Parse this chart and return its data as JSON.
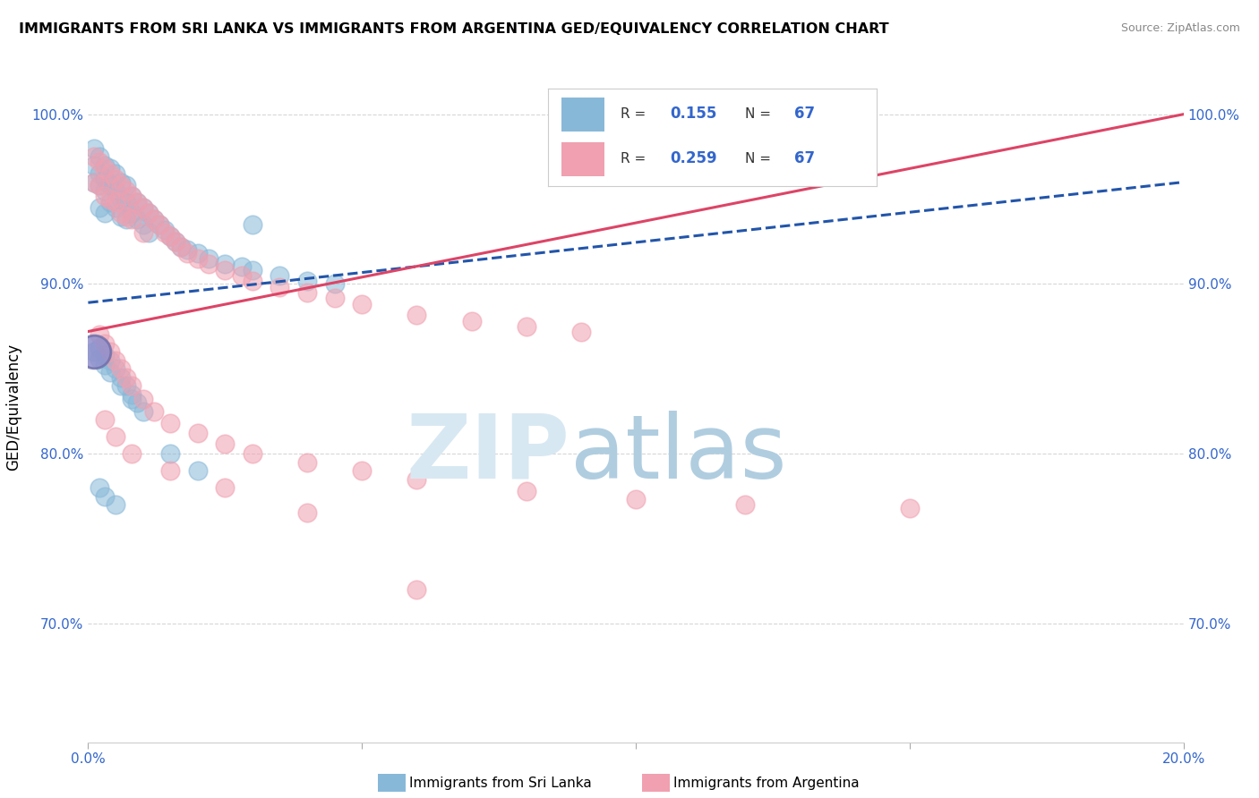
{
  "title": "IMMIGRANTS FROM SRI LANKA VS IMMIGRANTS FROM ARGENTINA GED/EQUIVALENCY CORRELATION CHART",
  "source_text": "Source: ZipAtlas.com",
  "ylabel": "GED/Equivalency",
  "xlim": [
    0.0,
    0.2
  ],
  "ylim": [
    0.63,
    1.025
  ],
  "yticks": [
    0.7,
    0.8,
    0.9,
    1.0
  ],
  "ytick_labels": [
    "70.0%",
    "80.0%",
    "90.0%",
    "100.0%"
  ],
  "xticks": [
    0.0,
    0.05,
    0.1,
    0.15,
    0.2
  ],
  "xtick_labels": [
    "0.0%",
    "",
    "",
    "",
    "20.0%"
  ],
  "xtick_minor": [
    0.025,
    0.075,
    0.125,
    0.175
  ],
  "legend_r_sri_lanka": "0.155",
  "legend_n_sri_lanka": "67",
  "legend_r_argentina": "0.259",
  "legend_n_argentina": "67",
  "sri_lanka_color": "#88B8D8",
  "argentina_color": "#F0A0B0",
  "sri_lanka_line_color": "#2255AA",
  "argentina_line_color": "#DD4466",
  "sri_lanka_trend": [
    0.0,
    0.2,
    0.889,
    0.96
  ],
  "argentina_trend": [
    0.0,
    0.2,
    0.872,
    1.0
  ],
  "sri_lanka_x": [
    0.001,
    0.001,
    0.001,
    0.002,
    0.002,
    0.002,
    0.002,
    0.003,
    0.003,
    0.003,
    0.003,
    0.004,
    0.004,
    0.004,
    0.005,
    0.005,
    0.005,
    0.006,
    0.006,
    0.006,
    0.007,
    0.007,
    0.007,
    0.008,
    0.008,
    0.009,
    0.009,
    0.01,
    0.01,
    0.011,
    0.011,
    0.012,
    0.013,
    0.014,
    0.015,
    0.016,
    0.017,
    0.018,
    0.02,
    0.022,
    0.025,
    0.028,
    0.03,
    0.035,
    0.04,
    0.045,
    0.002,
    0.003,
    0.004,
    0.005,
    0.006,
    0.007,
    0.008,
    0.009,
    0.01,
    0.015,
    0.02,
    0.002,
    0.003,
    0.005,
    0.001,
    0.002,
    0.003,
    0.004,
    0.006,
    0.008,
    0.03
  ],
  "sri_lanka_y": [
    0.98,
    0.97,
    0.96,
    0.975,
    0.965,
    0.958,
    0.945,
    0.97,
    0.962,
    0.955,
    0.942,
    0.968,
    0.958,
    0.948,
    0.965,
    0.955,
    0.945,
    0.96,
    0.95,
    0.94,
    0.958,
    0.948,
    0.938,
    0.952,
    0.942,
    0.948,
    0.938,
    0.945,
    0.935,
    0.942,
    0.93,
    0.938,
    0.935,
    0.932,
    0.928,
    0.925,
    0.922,
    0.92,
    0.918,
    0.915,
    0.912,
    0.91,
    0.908,
    0.905,
    0.902,
    0.9,
    0.862,
    0.858,
    0.855,
    0.85,
    0.845,
    0.84,
    0.835,
    0.83,
    0.825,
    0.8,
    0.79,
    0.78,
    0.775,
    0.77,
    0.86,
    0.856,
    0.852,
    0.848,
    0.84,
    0.832,
    0.935
  ],
  "argentina_x": [
    0.001,
    0.001,
    0.002,
    0.002,
    0.003,
    0.003,
    0.004,
    0.004,
    0.005,
    0.005,
    0.006,
    0.006,
    0.007,
    0.007,
    0.008,
    0.008,
    0.009,
    0.01,
    0.01,
    0.011,
    0.012,
    0.013,
    0.014,
    0.015,
    0.016,
    0.017,
    0.018,
    0.02,
    0.022,
    0.025,
    0.028,
    0.03,
    0.035,
    0.04,
    0.045,
    0.05,
    0.06,
    0.07,
    0.08,
    0.09,
    0.002,
    0.003,
    0.004,
    0.005,
    0.006,
    0.007,
    0.008,
    0.01,
    0.012,
    0.015,
    0.02,
    0.025,
    0.03,
    0.04,
    0.05,
    0.06,
    0.08,
    0.1,
    0.12,
    0.15,
    0.003,
    0.005,
    0.008,
    0.015,
    0.025,
    0.04,
    0.06
  ],
  "argentina_y": [
    0.975,
    0.96,
    0.972,
    0.958,
    0.968,
    0.952,
    0.965,
    0.95,
    0.962,
    0.948,
    0.958,
    0.942,
    0.955,
    0.94,
    0.952,
    0.938,
    0.948,
    0.945,
    0.93,
    0.942,
    0.938,
    0.935,
    0.93,
    0.928,
    0.925,
    0.922,
    0.918,
    0.915,
    0.912,
    0.908,
    0.905,
    0.902,
    0.898,
    0.895,
    0.892,
    0.888,
    0.882,
    0.878,
    0.875,
    0.872,
    0.87,
    0.865,
    0.86,
    0.855,
    0.85,
    0.845,
    0.84,
    0.832,
    0.825,
    0.818,
    0.812,
    0.806,
    0.8,
    0.795,
    0.79,
    0.785,
    0.778,
    0.773,
    0.77,
    0.768,
    0.82,
    0.81,
    0.8,
    0.79,
    0.78,
    0.765,
    0.72
  ]
}
